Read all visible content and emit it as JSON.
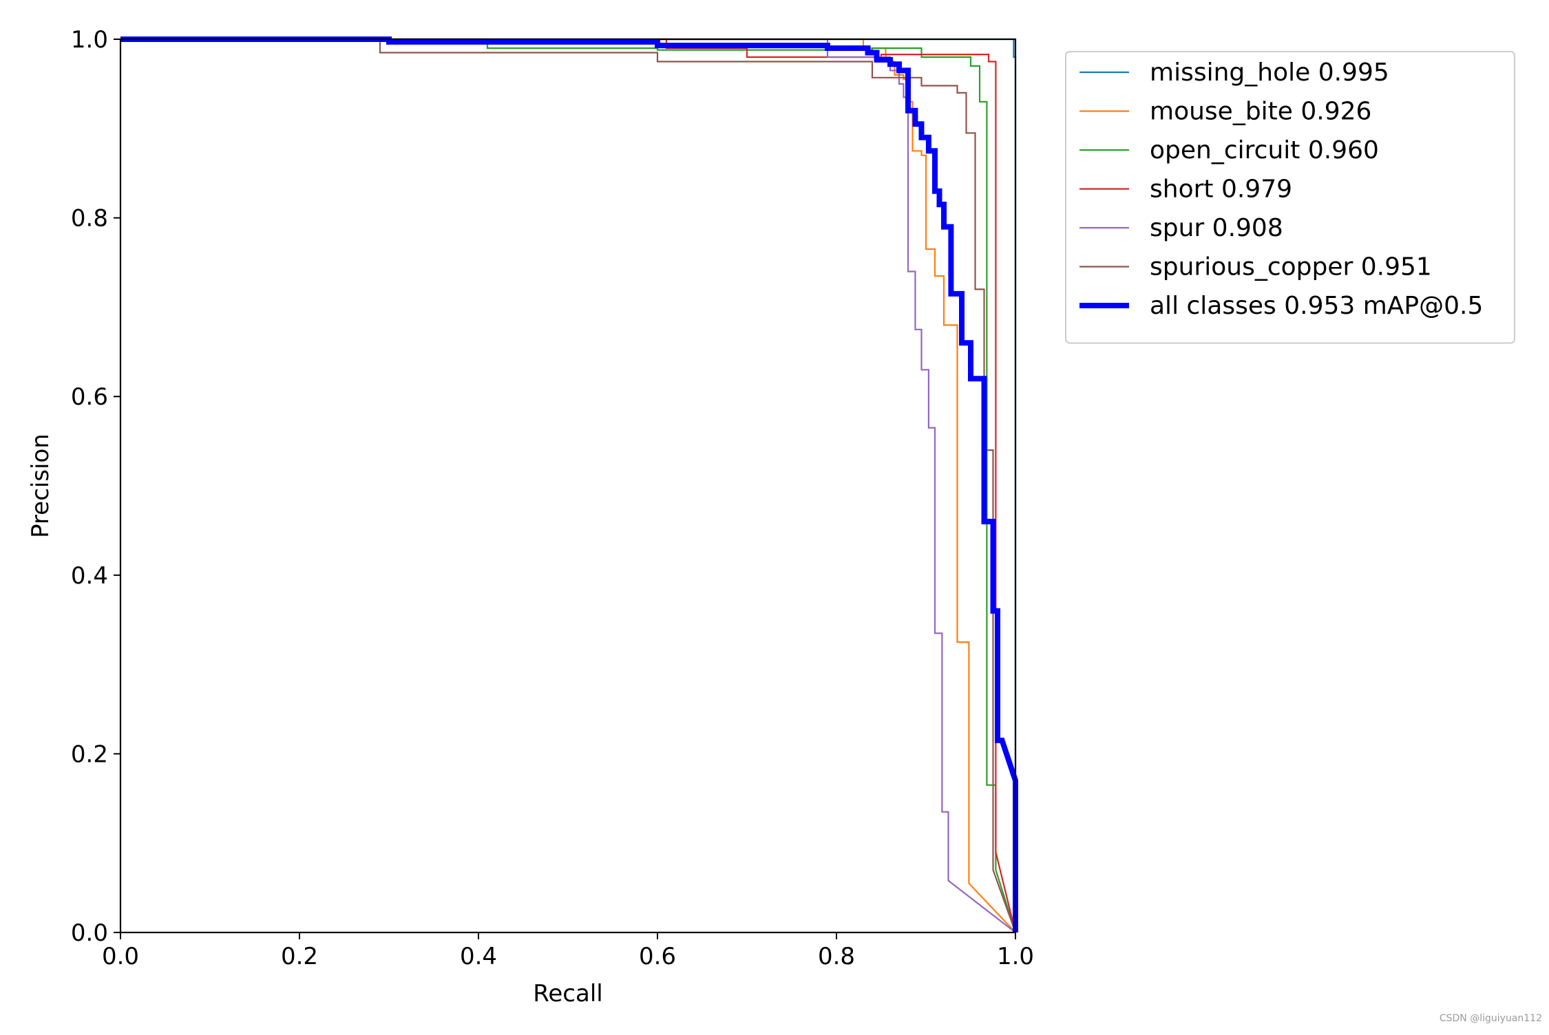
{
  "chart_data": {
    "type": "line",
    "xlabel": "Recall",
    "ylabel": "Precision",
    "xlim": [
      0,
      1
    ],
    "ylim": [
      0,
      1
    ],
    "xticks": [
      "0.0",
      "0.2",
      "0.4",
      "0.6",
      "0.8",
      "1.0"
    ],
    "yticks": [
      "0.0",
      "0.2",
      "0.4",
      "0.6",
      "0.8",
      "1.0"
    ],
    "grid": false,
    "legend_position": "outside-top-right",
    "series": [
      {
        "name": "missing_hole 0.995",
        "color": "#1f77b4",
        "width": "thin",
        "points": [
          [
            0,
            1.0
          ],
          [
            0.998,
            1.0
          ],
          [
            0.998,
            0.98
          ],
          [
            1.0,
            0.98
          ],
          [
            1.0,
            0.0
          ]
        ]
      },
      {
        "name": "mouse_bite 0.926",
        "color": "#ff7f0e",
        "width": "thin",
        "points": [
          [
            0,
            1.0
          ],
          [
            0.83,
            1.0
          ],
          [
            0.83,
            0.99
          ],
          [
            0.855,
            0.99
          ],
          [
            0.855,
            0.975
          ],
          [
            0.865,
            0.975
          ],
          [
            0.865,
            0.96
          ],
          [
            0.875,
            0.96
          ],
          [
            0.875,
            0.955
          ],
          [
            0.88,
            0.955
          ],
          [
            0.88,
            0.93
          ],
          [
            0.885,
            0.93
          ],
          [
            0.885,
            0.875
          ],
          [
            0.895,
            0.875
          ],
          [
            0.895,
            0.87
          ],
          [
            0.9,
            0.87
          ],
          [
            0.9,
            0.765
          ],
          [
            0.91,
            0.765
          ],
          [
            0.91,
            0.735
          ],
          [
            0.92,
            0.735
          ],
          [
            0.92,
            0.68
          ],
          [
            0.935,
            0.68
          ],
          [
            0.935,
            0.325
          ],
          [
            0.948,
            0.325
          ],
          [
            0.948,
            0.055
          ],
          [
            1.0,
            0.0
          ]
        ]
      },
      {
        "name": "open_circuit 0.960",
        "color": "#2ca02c",
        "width": "thin",
        "points": [
          [
            0,
            1.0
          ],
          [
            0.41,
            1.0
          ],
          [
            0.41,
            0.99
          ],
          [
            0.6,
            0.99
          ],
          [
            0.6,
            0.988
          ],
          [
            0.84,
            0.988
          ],
          [
            0.84,
            0.99
          ],
          [
            0.895,
            0.99
          ],
          [
            0.895,
            0.98
          ],
          [
            0.95,
            0.98
          ],
          [
            0.95,
            0.97
          ],
          [
            0.96,
            0.97
          ],
          [
            0.96,
            0.93
          ],
          [
            0.968,
            0.93
          ],
          [
            0.968,
            0.165
          ],
          [
            0.978,
            0.165
          ],
          [
            0.978,
            0.07
          ],
          [
            1.0,
            0.0
          ]
        ]
      },
      {
        "name": "short 0.979",
        "color": "#d62728",
        "width": "thin",
        "points": [
          [
            0,
            1.0
          ],
          [
            0.61,
            1.0
          ],
          [
            0.61,
            0.99
          ],
          [
            0.7,
            0.99
          ],
          [
            0.7,
            0.98
          ],
          [
            0.85,
            0.98
          ],
          [
            0.85,
            0.983
          ],
          [
            0.97,
            0.983
          ],
          [
            0.97,
            0.975
          ],
          [
            0.978,
            0.975
          ],
          [
            0.978,
            0.09
          ],
          [
            1.0,
            0.0
          ]
        ]
      },
      {
        "name": "spur 0.908",
        "color": "#9467bd",
        "width": "thin",
        "points": [
          [
            0,
            1.0
          ],
          [
            0.79,
            1.0
          ],
          [
            0.79,
            0.98
          ],
          [
            0.86,
            0.98
          ],
          [
            0.86,
            0.965
          ],
          [
            0.87,
            0.965
          ],
          [
            0.87,
            0.95
          ],
          [
            0.875,
            0.95
          ],
          [
            0.875,
            0.935
          ],
          [
            0.88,
            0.935
          ],
          [
            0.88,
            0.74
          ],
          [
            0.888,
            0.74
          ],
          [
            0.888,
            0.675
          ],
          [
            0.895,
            0.675
          ],
          [
            0.895,
            0.63
          ],
          [
            0.903,
            0.63
          ],
          [
            0.903,
            0.565
          ],
          [
            0.91,
            0.565
          ],
          [
            0.91,
            0.335
          ],
          [
            0.918,
            0.335
          ],
          [
            0.918,
            0.135
          ],
          [
            0.925,
            0.135
          ],
          [
            0.925,
            0.058
          ],
          [
            1.0,
            0.0
          ]
        ]
      },
      {
        "name": "spurious_copper 0.951",
        "color": "#8c564b",
        "width": "thin",
        "points": [
          [
            0,
            1.0
          ],
          [
            0.29,
            1.0
          ],
          [
            0.29,
            0.985
          ],
          [
            0.6,
            0.985
          ],
          [
            0.6,
            0.975
          ],
          [
            0.84,
            0.975
          ],
          [
            0.84,
            0.957
          ],
          [
            0.895,
            0.957
          ],
          [
            0.895,
            0.948
          ],
          [
            0.935,
            0.948
          ],
          [
            0.935,
            0.94
          ],
          [
            0.945,
            0.94
          ],
          [
            0.945,
            0.895
          ],
          [
            0.955,
            0.895
          ],
          [
            0.955,
            0.72
          ],
          [
            0.965,
            0.72
          ],
          [
            0.965,
            0.54
          ],
          [
            0.975,
            0.54
          ],
          [
            0.975,
            0.07
          ],
          [
            1.0,
            0.0
          ]
        ]
      },
      {
        "name": "all classes 0.953 mAP@0.5",
        "color": "#0000ff",
        "width": "thick",
        "points": [
          [
            0,
            1.0
          ],
          [
            0.3,
            1.0
          ],
          [
            0.3,
            0.997
          ],
          [
            0.6,
            0.997
          ],
          [
            0.6,
            0.993
          ],
          [
            0.79,
            0.993
          ],
          [
            0.79,
            0.99
          ],
          [
            0.835,
            0.99
          ],
          [
            0.835,
            0.985
          ],
          [
            0.845,
            0.985
          ],
          [
            0.845,
            0.977
          ],
          [
            0.86,
            0.977
          ],
          [
            0.86,
            0.972
          ],
          [
            0.87,
            0.972
          ],
          [
            0.87,
            0.965
          ],
          [
            0.88,
            0.965
          ],
          [
            0.88,
            0.92
          ],
          [
            0.888,
            0.92
          ],
          [
            0.888,
            0.905
          ],
          [
            0.895,
            0.905
          ],
          [
            0.895,
            0.89
          ],
          [
            0.903,
            0.89
          ],
          [
            0.903,
            0.875
          ],
          [
            0.91,
            0.875
          ],
          [
            0.91,
            0.83
          ],
          [
            0.915,
            0.83
          ],
          [
            0.915,
            0.815
          ],
          [
            0.92,
            0.815
          ],
          [
            0.92,
            0.79
          ],
          [
            0.928,
            0.79
          ],
          [
            0.928,
            0.715
          ],
          [
            0.94,
            0.715
          ],
          [
            0.94,
            0.66
          ],
          [
            0.95,
            0.66
          ],
          [
            0.95,
            0.62
          ],
          [
            0.965,
            0.62
          ],
          [
            0.965,
            0.46
          ],
          [
            0.975,
            0.46
          ],
          [
            0.975,
            0.36
          ],
          [
            0.98,
            0.36
          ],
          [
            0.98,
            0.215
          ],
          [
            0.985,
            0.215
          ],
          [
            1.0,
            0.17
          ],
          [
            1.0,
            0.0
          ]
        ]
      }
    ]
  },
  "watermark": "CSDN @liguiyuan112"
}
